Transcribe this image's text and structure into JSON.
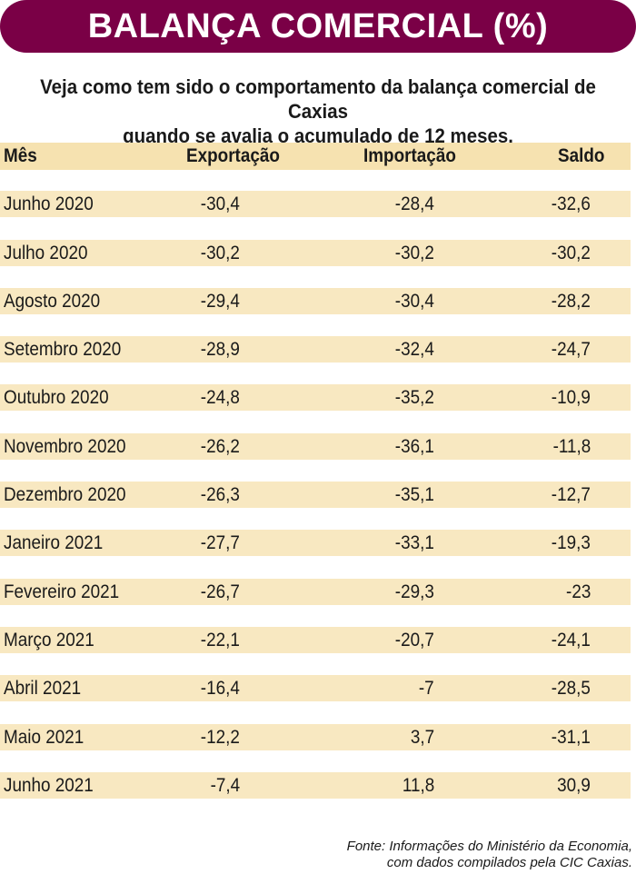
{
  "title": "BALANÇA COMERCIAL (%)",
  "subtitle_line1": "Veja como tem sido o comportamento da balança comercial de Caxias",
  "subtitle_line2": "quando se avalia o acumulado de 12 meses.",
  "colors": {
    "title_bg": "#7a0046",
    "row_band": "#f8e8c1"
  },
  "columns": [
    "Mês",
    "Exportação",
    "Importação",
    "Saldo"
  ],
  "rows": [
    [
      "Junho 2020",
      "-30,4",
      "-28,4",
      "-32,6"
    ],
    [
      "Julho 2020",
      "-30,2",
      "-30,2",
      "-30,2"
    ],
    [
      "Agosto 2020",
      "-29,4",
      "-30,4",
      "-28,2"
    ],
    [
      "Setembro 2020",
      "-28,9",
      "-32,4",
      "-24,7"
    ],
    [
      "Outubro 2020",
      "-24,8",
      "-35,2",
      "-10,9"
    ],
    [
      "Novembro 2020",
      "-26,2",
      "-36,1",
      "-11,8"
    ],
    [
      "Dezembro 2020",
      "-26,3",
      "-35,1",
      "-12,7"
    ],
    [
      "Janeiro 2021",
      "-27,7",
      "-33,1",
      "-19,3"
    ],
    [
      "Fevereiro 2021",
      "-26,7",
      "-29,3",
      "-23"
    ],
    [
      "Março 2021",
      "-22,1",
      "-20,7",
      "-24,1"
    ],
    [
      "Abril 2021",
      "-16,4",
      "-7",
      "-28,5"
    ],
    [
      "Maio 2021",
      "-12,2",
      "3,7",
      "-31,1"
    ],
    [
      "Junho 2021",
      "-7,4",
      "11,8",
      "30,9"
    ]
  ],
  "source_line1": "Fonte: Informações do Ministério da Economia,",
  "source_line2": "com dados compilados pela CIC Caxias."
}
